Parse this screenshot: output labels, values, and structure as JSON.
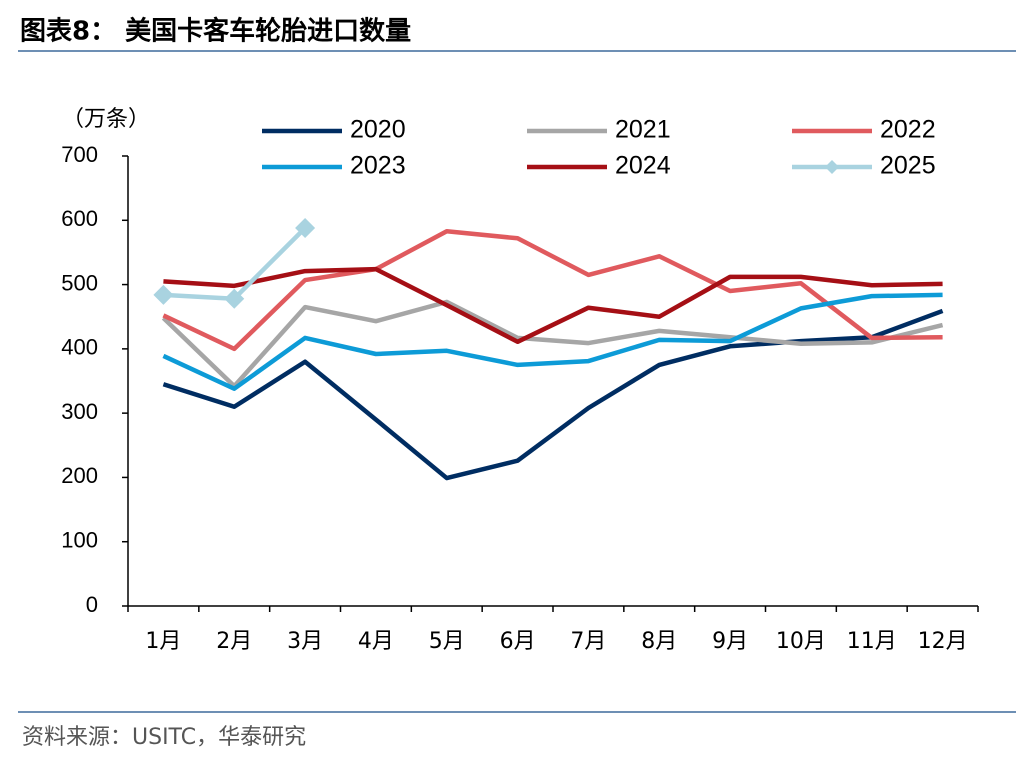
{
  "chart_data": {
    "type": "line",
    "title": "图表8：  美国卡客车轮胎进口数量",
    "unit": "（万条）",
    "source": "资料来源：USITC，华泰研究",
    "categories": [
      "1月",
      "2月",
      "3月",
      "4月",
      "5月",
      "6月",
      "7月",
      "8月",
      "9月",
      "10月",
      "11月",
      "12月"
    ],
    "ylim": [
      0,
      700
    ],
    "yticks": [
      0,
      100,
      200,
      300,
      400,
      500,
      600,
      700
    ],
    "series": [
      {
        "name": "2020",
        "color": "#002d62",
        "values": [
          345,
          310,
          380,
          290,
          199,
          226,
          308,
          375,
          404,
          412,
          418,
          459
        ]
      },
      {
        "name": "2021",
        "color": "#a6a6a6",
        "values": [
          448,
          342,
          465,
          443,
          473,
          417,
          409,
          428,
          418,
          408,
          410,
          437
        ]
      },
      {
        "name": "2022",
        "color": "#e05a5e",
        "values": [
          452,
          400,
          507,
          524,
          583,
          572,
          515,
          544,
          490,
          502,
          417,
          418
        ]
      },
      {
        "name": "2023",
        "color": "#0d9bd7",
        "values": [
          389,
          338,
          417,
          392,
          397,
          375,
          381,
          414,
          412,
          463,
          482,
          484
        ]
      },
      {
        "name": "2024",
        "color": "#a50f15",
        "values": [
          505,
          498,
          521,
          524,
          468,
          411,
          464,
          450,
          512,
          512,
          499,
          501
        ]
      },
      {
        "name": "2025",
        "color": "#a9d3e0",
        "marker": "diamond",
        "values": [
          484,
          478,
          588,
          null,
          null,
          null,
          null,
          null,
          null,
          null,
          null,
          null
        ]
      }
    ]
  }
}
